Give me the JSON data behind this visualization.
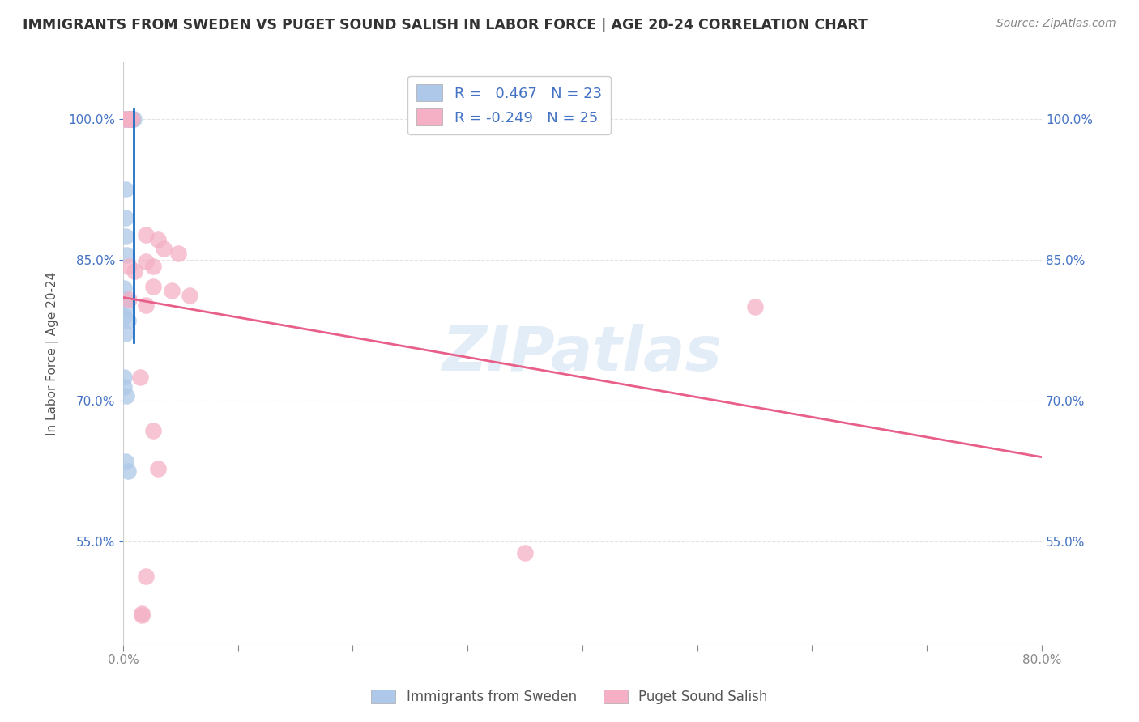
{
  "title": "IMMIGRANTS FROM SWEDEN VS PUGET SOUND SALISH IN LABOR FORCE | AGE 20-24 CORRELATION CHART",
  "source": "Source: ZipAtlas.com",
  "ylabel": "In Labor Force | Age 20-24",
  "xlim": [
    0.0,
    0.8
  ],
  "ylim": [
    0.44,
    1.06
  ],
  "xtick_positions": [
    0.0,
    0.1,
    0.2,
    0.3,
    0.4,
    0.5,
    0.6,
    0.7,
    0.8
  ],
  "xtick_shown_labels": {
    "0": "0.0%",
    "8": "80.0%"
  },
  "ytick_positions": [
    0.55,
    0.7,
    0.85,
    1.0
  ],
  "ytick_labels": [
    "55.0%",
    "70.0%",
    "85.0%",
    "100.0%"
  ],
  "blue_r": 0.467,
  "blue_n": 23,
  "pink_r": -0.249,
  "pink_n": 25,
  "blue_color": "#adc8e8",
  "pink_color": "#f5b0c5",
  "blue_line_color": "#1a6cc4",
  "pink_line_color": "#e8608a",
  "legend_label_blue": "Immigrants from Sweden",
  "legend_label_pink": "Puget Sound Salish",
  "watermark": "ZIPatlas",
  "blue_points": [
    [
      0.001,
      1.0
    ],
    [
      0.004,
      1.0
    ],
    [
      0.005,
      1.0
    ],
    [
      0.006,
      1.0
    ],
    [
      0.006,
      1.0
    ],
    [
      0.008,
      1.0
    ],
    [
      0.008,
      1.0
    ],
    [
      0.009,
      1.0
    ],
    [
      0.002,
      0.925
    ],
    [
      0.002,
      0.895
    ],
    [
      0.002,
      0.875
    ],
    [
      0.003,
      0.855
    ],
    [
      0.001,
      0.82
    ],
    [
      0.002,
      0.808
    ],
    [
      0.003,
      0.8
    ],
    [
      0.001,
      0.79
    ],
    [
      0.004,
      0.785
    ],
    [
      0.002,
      0.772
    ],
    [
      0.001,
      0.725
    ],
    [
      0.001,
      0.715
    ],
    [
      0.003,
      0.705
    ],
    [
      0.002,
      0.635
    ],
    [
      0.004,
      0.625
    ]
  ],
  "pink_points": [
    [
      0.001,
      1.0
    ],
    [
      0.005,
      1.0
    ],
    [
      0.005,
      1.0
    ],
    [
      0.008,
      1.0
    ],
    [
      0.02,
      0.877
    ],
    [
      0.03,
      0.872
    ],
    [
      0.035,
      0.862
    ],
    [
      0.048,
      0.857
    ],
    [
      0.02,
      0.848
    ],
    [
      0.026,
      0.843
    ],
    [
      0.005,
      0.843
    ],
    [
      0.01,
      0.838
    ],
    [
      0.026,
      0.822
    ],
    [
      0.042,
      0.817
    ],
    [
      0.058,
      0.812
    ],
    [
      0.005,
      0.808
    ],
    [
      0.02,
      0.802
    ],
    [
      0.55,
      0.8
    ],
    [
      0.015,
      0.725
    ],
    [
      0.026,
      0.668
    ],
    [
      0.03,
      0.628
    ],
    [
      0.35,
      0.538
    ],
    [
      0.02,
      0.513
    ],
    [
      0.016,
      0.473
    ],
    [
      0.016,
      0.472
    ]
  ],
  "blue_line": [
    [
      0.009,
      0.762
    ],
    [
      0.009,
      1.01
    ]
  ],
  "pink_line": [
    [
      0.0,
      0.81
    ],
    [
      0.8,
      0.64
    ]
  ],
  "title_fontsize": 12.5,
  "source_fontsize": 10,
  "axis_label_fontsize": 11,
  "tick_fontsize": 11
}
